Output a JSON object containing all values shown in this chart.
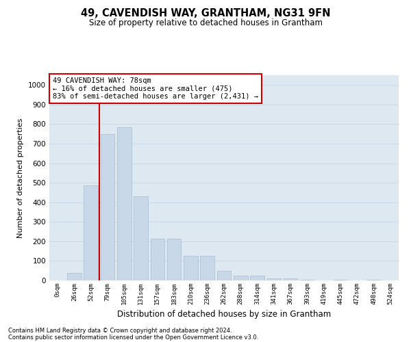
{
  "title1": "49, CAVENDISH WAY, GRANTHAM, NG31 9FN",
  "title2": "Size of property relative to detached houses in Grantham",
  "xlabel": "Distribution of detached houses by size in Grantham",
  "ylabel": "Number of detached properties",
  "categories": [
    "0sqm",
    "26sqm",
    "52sqm",
    "79sqm",
    "105sqm",
    "131sqm",
    "157sqm",
    "183sqm",
    "210sqm",
    "236sqm",
    "262sqm",
    "288sqm",
    "314sqm",
    "341sqm",
    "367sqm",
    "393sqm",
    "419sqm",
    "445sqm",
    "472sqm",
    "498sqm",
    "524sqm"
  ],
  "values": [
    0,
    40,
    485,
    750,
    785,
    430,
    215,
    215,
    125,
    125,
    50,
    25,
    25,
    10,
    10,
    5,
    0,
    5,
    0,
    5,
    0
  ],
  "bar_color": "#c8d8e8",
  "bar_edge_color": "#a8bccf",
  "bar_width": 0.85,
  "property_label": "49 CAVENDISH WAY: 78sqm",
  "annotation_line1": "← 16% of detached houses are smaller (475)",
  "annotation_line2": "83% of semi-detached houses are larger (2,431) →",
  "vline_color": "#cc0000",
  "vline_x": 2.5,
  "annotation_box_color": "#ffffff",
  "annotation_box_edge": "#cc0000",
  "ylim": [
    0,
    1050
  ],
  "yticks": [
    0,
    100,
    200,
    300,
    400,
    500,
    600,
    700,
    800,
    900,
    1000
  ],
  "grid_color": "#c8d8e8",
  "bg_color": "#dde8f0",
  "footer1": "Contains HM Land Registry data © Crown copyright and database right 2024.",
  "footer2": "Contains public sector information licensed under the Open Government Licence v3.0."
}
